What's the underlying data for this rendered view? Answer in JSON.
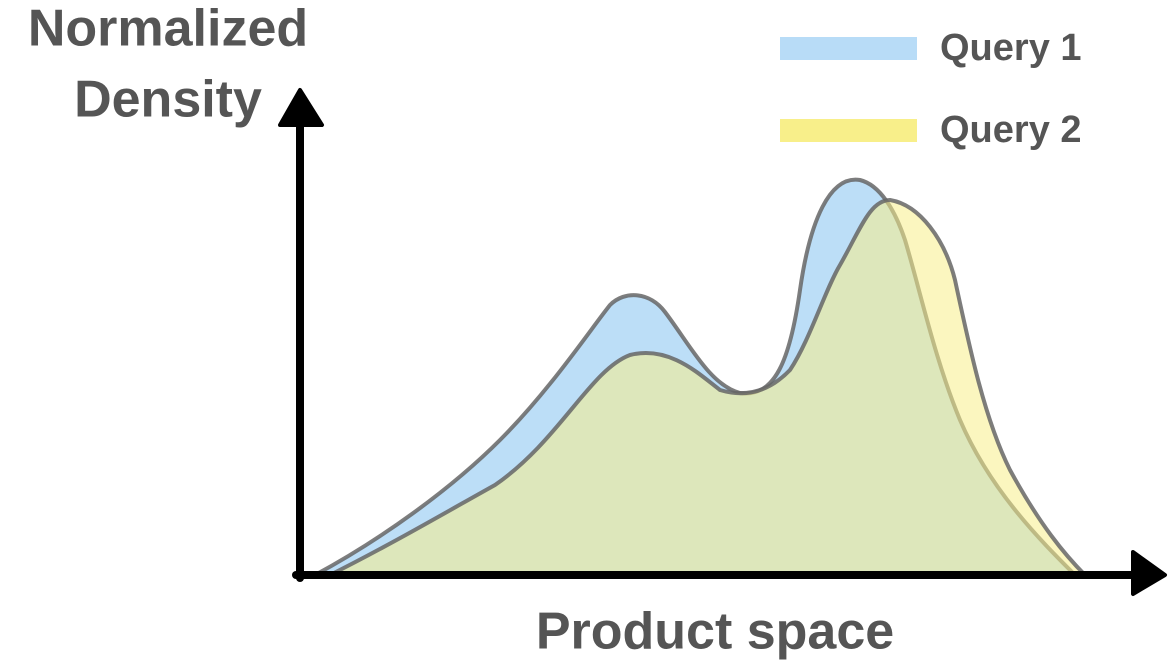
{
  "axes": {
    "y_label": [
      "Normalized",
      "Density"
    ],
    "x_label": "Product space"
  },
  "legend": [
    {
      "label": "Query 1",
      "color": "#b8dcf7"
    },
    {
      "label": "Query 2",
      "color": "#f8ef8a"
    }
  ]
}
